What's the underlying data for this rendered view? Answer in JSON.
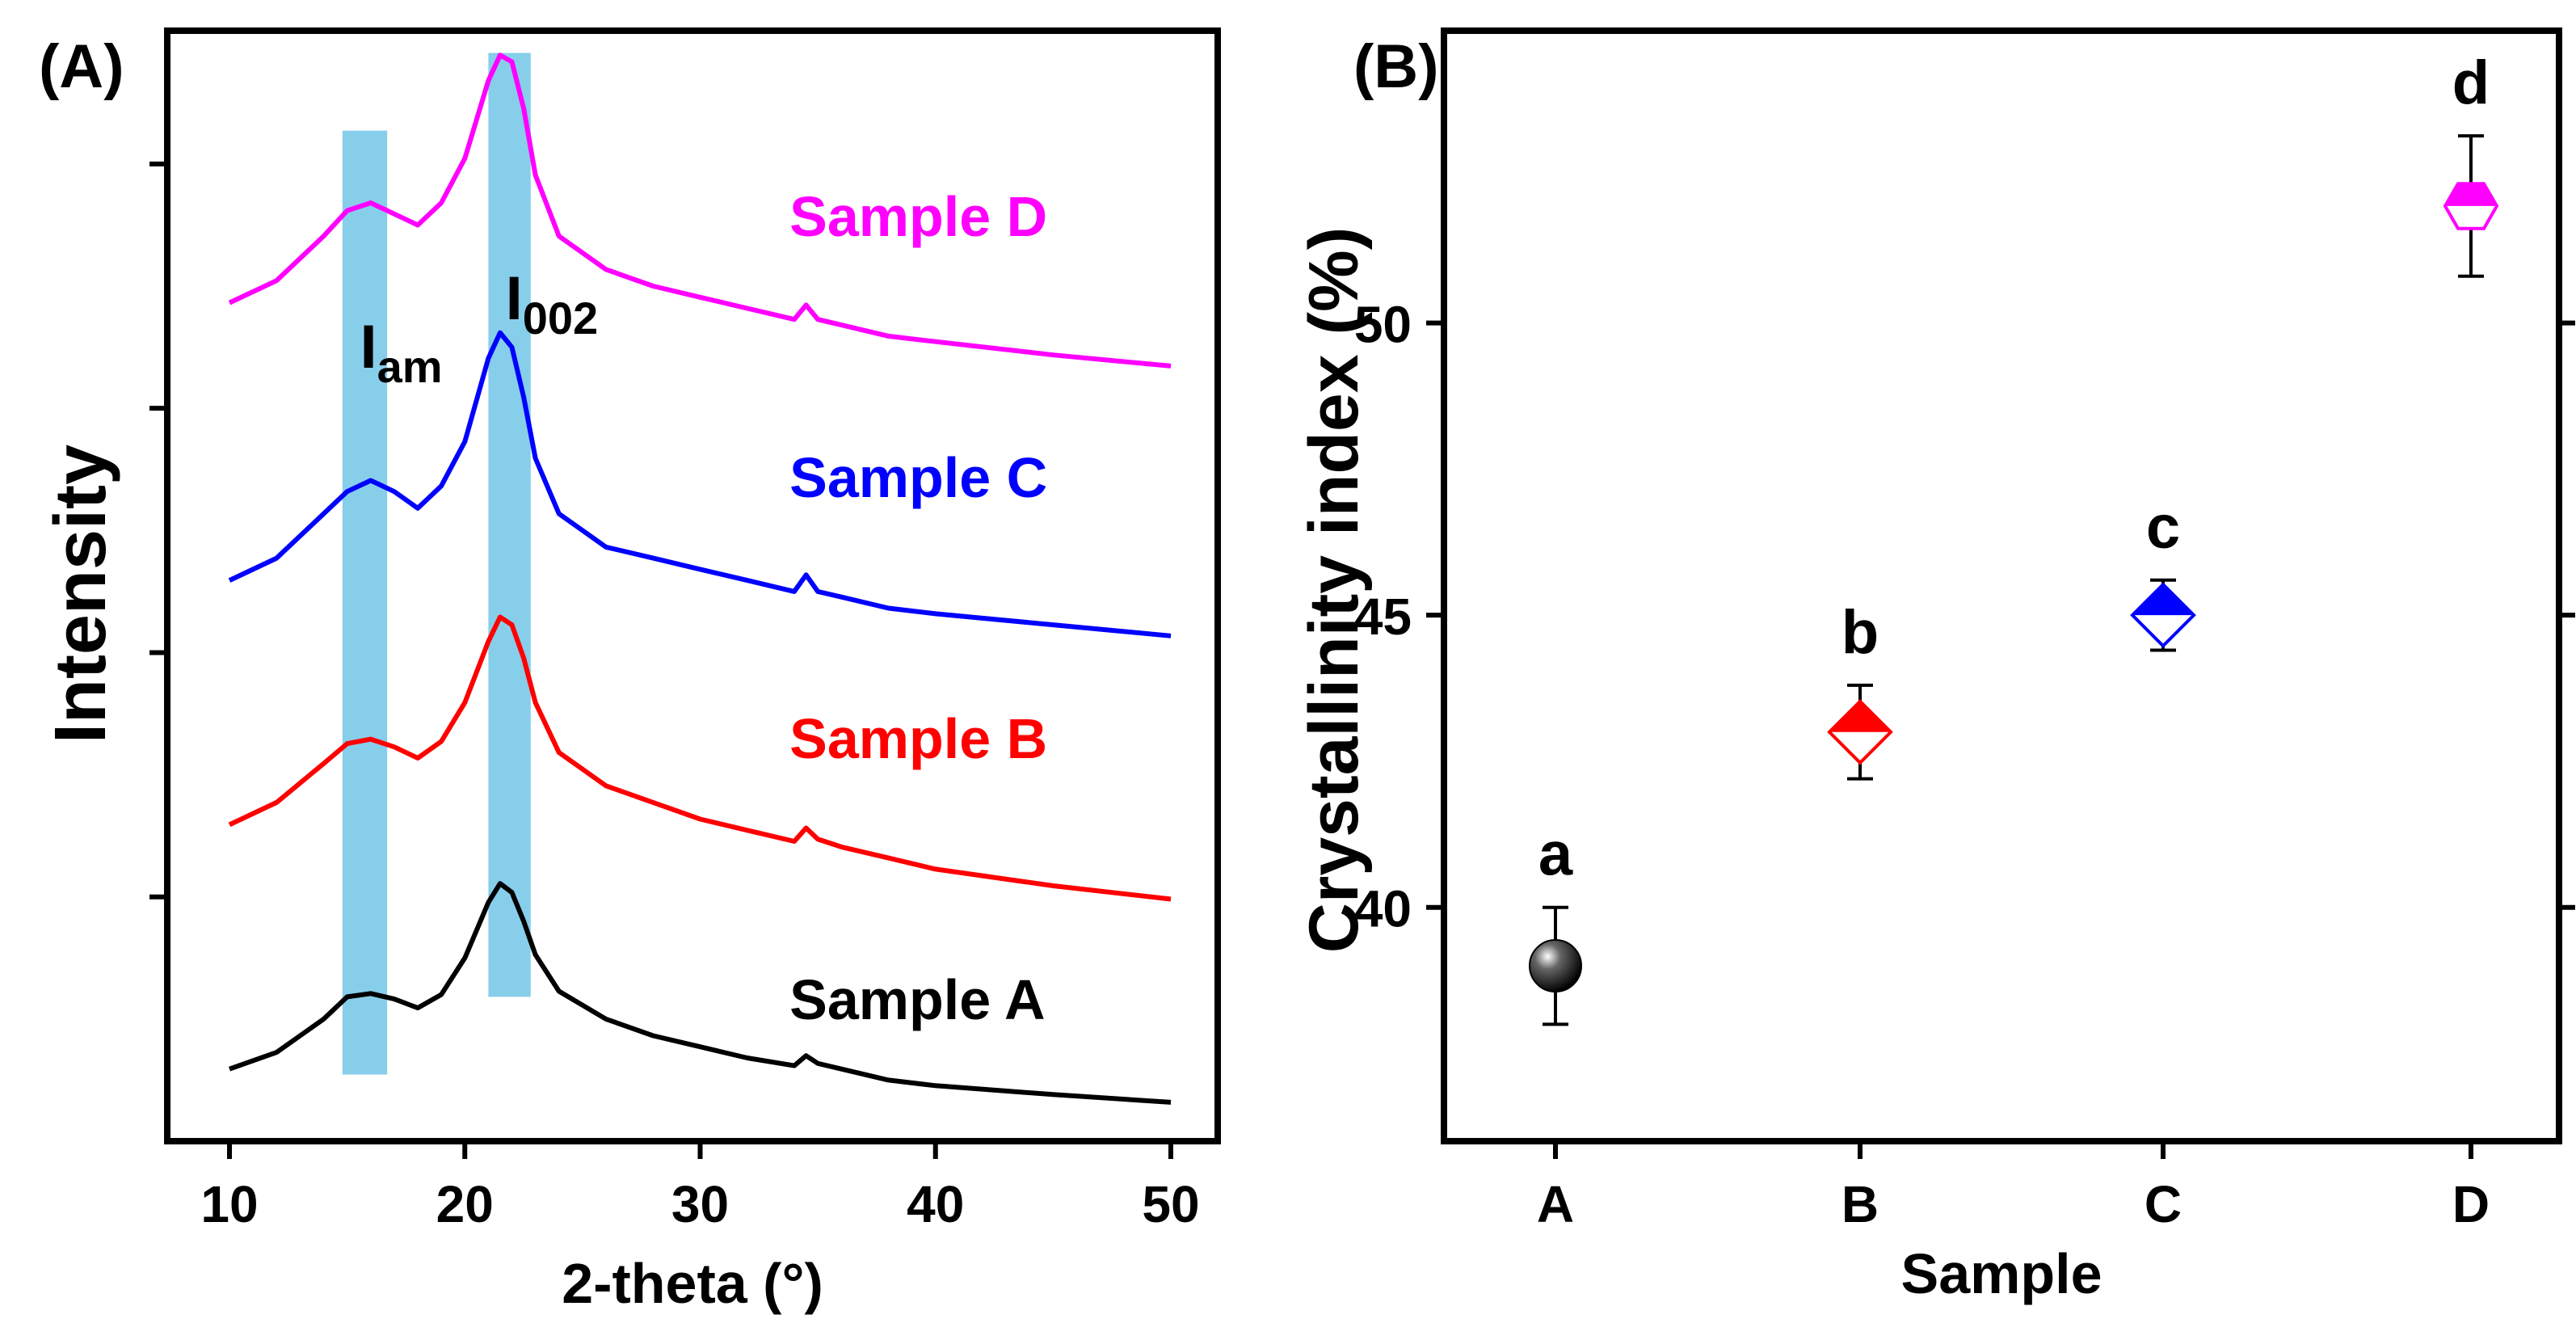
{
  "chart_data": [
    {
      "panel_label": "(A)",
      "type": "line",
      "xlabel": "2-theta (°)",
      "ylabel": "Intensity",
      "xlim": [
        8,
        52
      ],
      "ylim": [
        0,
        100
      ],
      "x_ticks": [
        10,
        20,
        30,
        40,
        50
      ],
      "y_ticks_unlabeled": [
        22,
        44,
        66,
        88
      ],
      "x_tick_labels": [
        "10",
        "20",
        "30",
        "40",
        "50"
      ],
      "highlight_bands": [
        {
          "label": "I",
          "subscript": "am",
          "x_range": [
            14.8,
            16.7
          ],
          "y_range": [
            6,
            91
          ],
          "color": "#87CEEB"
        },
        {
          "label": "I",
          "subscript": "002",
          "x_range": [
            21.0,
            22.8
          ],
          "y_range": [
            13,
            98
          ],
          "color": "#87CEEB"
        }
      ],
      "series": [
        {
          "name": "Sample A",
          "color": "#000000",
          "label_at": [
            33.8,
            11
          ],
          "x": [
            10,
            12,
            14,
            15,
            16,
            17,
            18,
            19,
            20,
            21,
            21.5,
            22,
            22.5,
            23,
            24,
            26,
            28,
            30,
            32,
            34,
            34.5,
            35,
            36,
            38,
            40,
            45,
            50
          ],
          "y": [
            6.5,
            8.0,
            11.0,
            13.0,
            13.3,
            12.8,
            12.0,
            13.2,
            16.5,
            21.5,
            23.2,
            22.4,
            19.8,
            16.8,
            13.5,
            11.0,
            9.5,
            8.5,
            7.5,
            6.8,
            7.7,
            7.0,
            6.5,
            5.5,
            5.0,
            4.2,
            3.5
          ]
        },
        {
          "name": "Sample B",
          "color": "#ff0000",
          "label_at": [
            33.8,
            34.5
          ],
          "x": [
            10,
            12,
            14,
            15,
            16,
            17,
            18,
            19,
            20,
            21,
            21.5,
            22,
            22.5,
            23,
            24,
            26,
            28,
            30,
            32,
            34,
            34.5,
            35,
            36,
            38,
            40,
            45,
            50
          ],
          "y": [
            28.5,
            30.5,
            34.0,
            35.8,
            36.2,
            35.5,
            34.5,
            36.0,
            39.5,
            45.0,
            47.2,
            46.5,
            43.5,
            39.5,
            35.0,
            32.0,
            30.5,
            29.0,
            28.0,
            27.0,
            28.2,
            27.2,
            26.5,
            25.5,
            24.5,
            23.0,
            21.8
          ]
        },
        {
          "name": "Sample C",
          "color": "#0000ff",
          "label_at": [
            33.8,
            58
          ],
          "x": [
            10,
            12,
            14,
            15,
            16,
            17,
            18,
            19,
            20,
            21,
            21.5,
            22,
            22.5,
            23,
            24,
            26,
            28,
            30,
            32,
            34,
            34.5,
            35,
            36,
            38,
            40,
            45,
            50
          ],
          "y": [
            50.5,
            52.5,
            56.5,
            58.5,
            59.5,
            58.5,
            57.0,
            59.0,
            63.0,
            70.5,
            72.8,
            71.5,
            67.0,
            61.5,
            56.5,
            53.5,
            52.5,
            51.5,
            50.5,
            49.5,
            51.0,
            49.5,
            49.0,
            48.0,
            47.5,
            46.5,
            45.5
          ]
        },
        {
          "name": "Sample D",
          "color": "#ff00ff",
          "label_at": [
            33.8,
            81.5
          ],
          "x": [
            10,
            12,
            14,
            15,
            16,
            17,
            18,
            19,
            20,
            21,
            21.5,
            22,
            22.5,
            23,
            24,
            26,
            28,
            30,
            32,
            34,
            34.5,
            35,
            36,
            38,
            40,
            45,
            50
          ],
          "y": [
            75.5,
            77.5,
            81.5,
            83.8,
            84.5,
            83.5,
            82.5,
            84.5,
            88.5,
            95.5,
            97.8,
            97.2,
            93.0,
            87.0,
            81.5,
            78.5,
            77.0,
            76.0,
            75.0,
            74.0,
            75.3,
            74.0,
            73.5,
            72.5,
            72.0,
            70.8,
            69.8
          ]
        }
      ]
    },
    {
      "panel_label": "(B)",
      "type": "scatter",
      "xlabel": "Sample",
      "ylabel": "Crystallinity index (%)",
      "categories": [
        "A",
        "B",
        "C",
        "D"
      ],
      "ylim": [
        36,
        55
      ],
      "y_ticks": [
        40,
        45,
        50
      ],
      "y_tick_labels": [
        "40",
        "45",
        "50"
      ],
      "series": [
        {
          "name": "Sample A",
          "category": "A",
          "value": 39.0,
          "error": 1.0,
          "marker": "sphere",
          "color": "#000000",
          "letter": "a"
        },
        {
          "name": "Sample B",
          "category": "B",
          "value": 43.0,
          "error": 0.8,
          "marker": "diamond",
          "color": "#ff0000",
          "letter": "b"
        },
        {
          "name": "Sample C",
          "category": "C",
          "value": 45.0,
          "error": 0.6,
          "marker": "diamond",
          "color": "#0000ff",
          "letter": "c"
        },
        {
          "name": "Sample D",
          "category": "D",
          "value": 52.0,
          "error": 1.2,
          "marker": "hexagon",
          "color": "#ff00ff",
          "letter": "d"
        }
      ]
    }
  ]
}
